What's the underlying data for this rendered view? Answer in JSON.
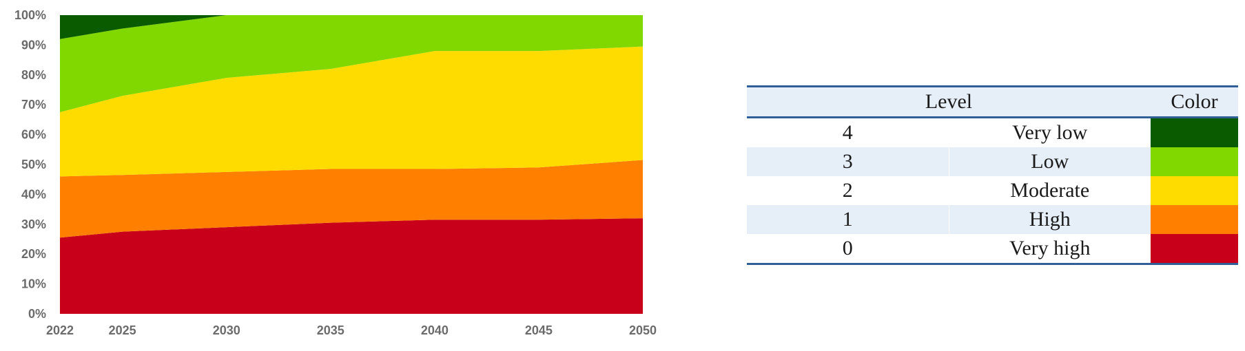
{
  "chart_data": {
    "type": "area",
    "stacked": true,
    "normalized": true,
    "x": [
      2022,
      2025,
      2030,
      2035,
      2040,
      2045,
      2050
    ],
    "xlim": [
      2022,
      2050
    ],
    "ylim": [
      0,
      100
    ],
    "ytick_labels": [
      "0%",
      "10%",
      "20%",
      "30%",
      "40%",
      "50%",
      "60%",
      "70%",
      "80%",
      "90%",
      "100%"
    ],
    "xtick_labels": [
      "2022",
      "2025",
      "2030",
      "2035",
      "2040",
      "2045",
      "2050"
    ],
    "grid": false,
    "series": [
      {
        "name": "Very high",
        "color": "#c8001a",
        "values": [
          25.5,
          27.5,
          29,
          30.5,
          31.5,
          31.5,
          32
        ]
      },
      {
        "name": "High",
        "color": "#ff8000",
        "values": [
          20.5,
          19,
          18.5,
          18,
          17,
          17.5,
          19.5
        ]
      },
      {
        "name": "Moderate",
        "color": "#ffdc00",
        "values": [
          21.5,
          26.5,
          31.5,
          33.5,
          39.5,
          39,
          38
        ]
      },
      {
        "name": "Low",
        "color": "#80d800",
        "values": [
          24.5,
          22.5,
          21,
          18,
          12,
          12,
          10.5
        ]
      },
      {
        "name": "Very low",
        "color": "#0a5a00",
        "values": [
          8,
          4.5,
          0,
          0,
          0,
          0,
          0
        ]
      }
    ]
  },
  "legend_table": {
    "headers": {
      "level": "Level",
      "color": "Color"
    },
    "rows": [
      {
        "code": "4",
        "level": "Very  low",
        "color": "#0a5a00"
      },
      {
        "code": "3",
        "level": "Low",
        "color": "#80d800"
      },
      {
        "code": "2",
        "level": "Moderate",
        "color": "#ffdc00"
      },
      {
        "code": "1",
        "level": "High",
        "color": "#ff8000"
      },
      {
        "code": "0",
        "level": "Very  high",
        "color": "#c8001a"
      }
    ]
  }
}
